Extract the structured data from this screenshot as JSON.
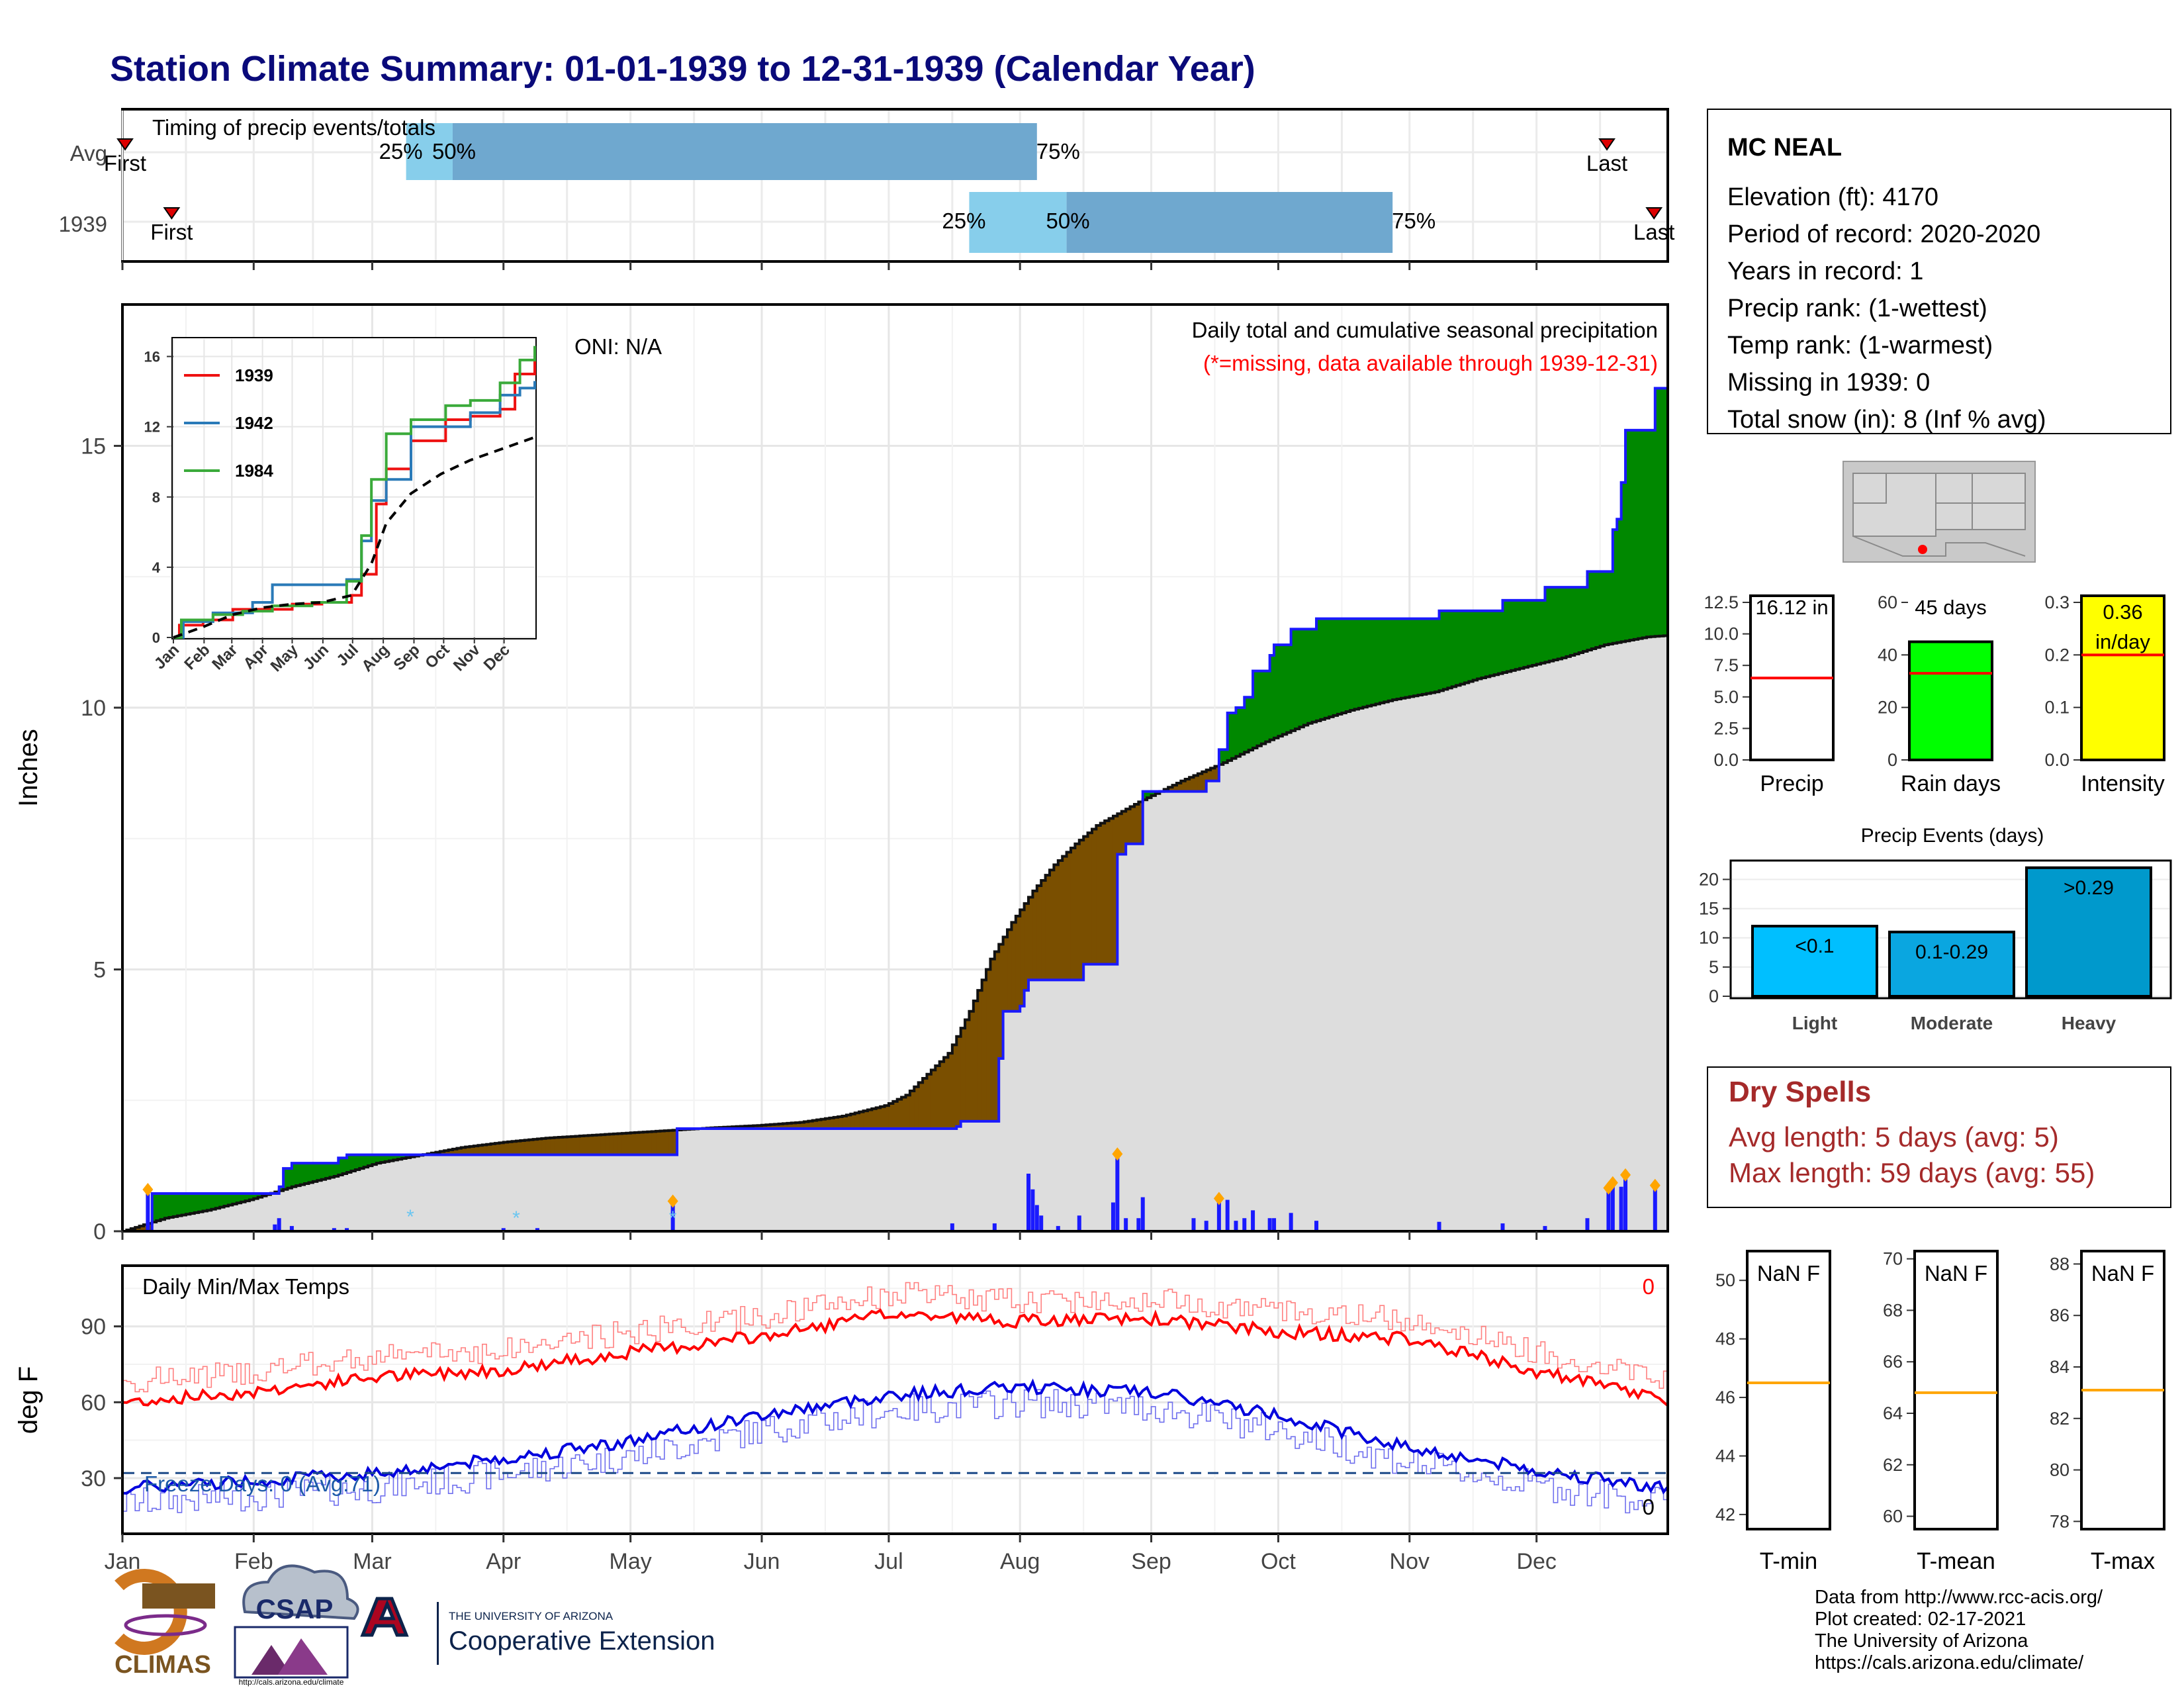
{
  "title": "Station Climate Summary: 01-01-1939 to 12-31-1939 (Calendar Year)",
  "colors": {
    "title": "#0a0a7a",
    "precip_above": "#008800",
    "precip_below": "#7a4f00",
    "climo_fill": "#dddddd",
    "bar_blue": "#1a1aff",
    "marker_orange": "#ffa500",
    "tmax": "#ff0000",
    "tmin": "#0000dd",
    "dry_spell": "#a52a2a",
    "quartile_light": "#87ceeb",
    "quartile_dark": "#6fa8cf"
  },
  "timing": {
    "title": "Timing of precip events/totals",
    "rows": [
      {
        "label": "Avg",
        "first_label": "First",
        "first_day": 0,
        "last_label": "Last",
        "last_day": 350,
        "q25_label": "25%",
        "q25_day": 67,
        "q50_label": "50%",
        "q50_day": 78,
        "q75_label": "75%",
        "q75_day": 216
      },
      {
        "label": "1939",
        "first_label": "First",
        "first_day": 6,
        "last_label": "Last",
        "last_day": 363,
        "q25_label": "25%",
        "q25_day": 200,
        "q50_label": "50%",
        "q50_day": 223,
        "q75_label": "75%",
        "q75_day": 300
      }
    ]
  },
  "station": {
    "name": "MC NEAL",
    "lines": [
      "Elevation (ft): 4170",
      "Period of record: 2020-2020",
      "Years in record: 1",
      "Precip rank:  (1-wettest)",
      "Temp rank:  (1-warmest)",
      "Missing in 1939: 0",
      "Total snow (in): 8 (Inf % avg)"
    ]
  },
  "map_marker": "red-dot-station-location",
  "main_chart": {
    "ylabel": "Inches",
    "oni": "ONI: N/A",
    "subtitle": "Daily total and cumulative seasonal precipitation",
    "missing_note": "(*=missing, data available through 1939-12-31)",
    "yticks": [
      "0",
      "5",
      "10",
      "15"
    ],
    "months": [
      "Jan",
      "Feb",
      "Mar",
      "Apr",
      "May",
      "Jun",
      "Jul",
      "Aug",
      "Sep",
      "Oct",
      "Nov",
      "Dec"
    ]
  },
  "inset": {
    "yticks": [
      "0",
      "4",
      "8",
      "12",
      "16"
    ],
    "months": [
      "Jan",
      "Feb",
      "Mar",
      "Apr",
      "May",
      "Jun",
      "Jul",
      "Aug",
      "Sep",
      "Oct",
      "Nov",
      "Dec"
    ],
    "legend": [
      {
        "name": "1939",
        "color": "#ee1111"
      },
      {
        "name": "1942",
        "color": "#2a7ab8"
      },
      {
        "name": "1984",
        "color": "#3aaa3a"
      }
    ]
  },
  "bar_precip": {
    "title": "Precip",
    "label": "16.12 in",
    "yticks": [
      "0.0",
      "2.5",
      "5.0",
      "7.5",
      "10.0",
      "12.5"
    ],
    "value": 16.12,
    "avg": 6.5,
    "ymax": 12.5,
    "color": "#ffffff"
  },
  "bar_raindays": {
    "title": "Rain days",
    "label": "45 days",
    "yticks": [
      "0",
      "20",
      "40",
      "60"
    ],
    "value": 45,
    "avg": 33,
    "ymax": 60,
    "color": "#00ff00"
  },
  "bar_intensity": {
    "title": "Intensity",
    "label1": "0.36",
    "label2": "in/day",
    "yticks": [
      "0.0",
      "0.1",
      "0.2",
      "0.3"
    ],
    "value": 0.36,
    "avg": 0.2,
    "ymax": 0.3,
    "color": "#ffff00"
  },
  "events": {
    "title": "Precip Events (days)",
    "yticks": [
      "0",
      "5",
      "10",
      "15",
      "20"
    ],
    "categories": [
      "Light",
      "Moderate",
      "Heavy"
    ],
    "labels": [
      "<0.1",
      "0.1-0.29",
      ">0.29"
    ],
    "values": [
      12,
      11,
      22
    ],
    "colors": [
      "#00bfff",
      "#0aa6e0",
      "#0099cc"
    ]
  },
  "dry_spells": {
    "title": "Dry Spells",
    "avg_line": "Avg length: 5 days (avg: 5)",
    "max_line": "Max length: 59 days (avg: 55)"
  },
  "temps": {
    "ylabel": "deg F",
    "title": "Daily Min/Max Temps",
    "freeze": "Freeze Days: 0 (Avg:71)",
    "top_count": "0",
    "bottom_count": "0",
    "yticks": [
      "30",
      "60",
      "90"
    ]
  },
  "tboxes": [
    {
      "title": "T-min",
      "label": "NaN F",
      "yticks": [
        "42",
        "44",
        "46",
        "48",
        "50"
      ],
      "ymin": 41.5,
      "ymax": 51,
      "avg": 46.5
    },
    {
      "title": "T-mean",
      "label": "NaN F",
      "yticks": [
        "60",
        "62",
        "64",
        "66",
        "68",
        "70"
      ],
      "ymin": 59.5,
      "ymax": 70.3,
      "avg": 64.8
    },
    {
      "title": "T-max",
      "label": "NaN F",
      "yticks": [
        "78",
        "80",
        "82",
        "84",
        "86",
        "88"
      ],
      "ymin": 77.7,
      "ymax": 88.5,
      "avg": 83.1
    }
  ],
  "logos": {
    "climas": "CLIMAS",
    "csap": "CSAP",
    "csap_url": "http://cals.arizona.edu/climate",
    "ua_small": "THE UNIVERSITY OF ARIZONA",
    "ua_big": "Cooperative Extension"
  },
  "footer": [
    "Data from http://www.rcc-acis.org/",
    "Plot created: 02-17-2021",
    "The University of Arizona",
    "https://cals.arizona.edu/climate/"
  ],
  "chart_data": [
    {
      "type": "area",
      "title": "Daily total and cumulative seasonal precipitation",
      "xlabel": "",
      "ylabel": "Inches",
      "ylim": [
        0,
        17.7
      ],
      "x_months": [
        "Jan",
        "Feb",
        "Mar",
        "Apr",
        "May",
        "Jun",
        "Jul",
        "Aug",
        "Sep",
        "Oct",
        "Nov",
        "Dec"
      ],
      "cumulative_1939": [
        [
          0,
          0
        ],
        [
          6,
          0
        ],
        [
          7,
          0.72
        ],
        [
          36,
          0.72
        ],
        [
          37,
          0.85
        ],
        [
          38,
          1.2
        ],
        [
          39,
          1.2
        ],
        [
          40,
          1.3
        ],
        [
          50,
          1.3
        ],
        [
          51,
          1.4
        ],
        [
          52,
          1.4
        ],
        [
          53,
          1.46
        ],
        [
          130,
          1.46
        ],
        [
          131,
          1.96
        ],
        [
          197,
          2.0
        ],
        [
          198,
          2.1
        ],
        [
          206,
          2.1
        ],
        [
          207,
          3.3
        ],
        [
          208,
          4.2
        ],
        [
          212,
          4.3
        ],
        [
          213,
          4.6
        ],
        [
          214,
          4.8
        ],
        [
          226,
          4.8
        ],
        [
          227,
          5.1
        ],
        [
          234,
          5.1
        ],
        [
          235,
          7.2
        ],
        [
          237,
          7.4
        ],
        [
          240,
          7.4
        ],
        [
          241,
          8.4
        ],
        [
          255,
          8.4
        ],
        [
          256,
          8.6
        ],
        [
          258,
          8.6
        ],
        [
          259,
          9.2
        ],
        [
          261,
          9.9
        ],
        [
          263,
          10.0
        ],
        [
          265,
          10.2
        ],
        [
          267,
          10.7
        ],
        [
          271,
          11.0
        ],
        [
          272,
          11.2
        ],
        [
          276,
          11.5
        ],
        [
          282,
          11.7
        ],
        [
          310,
          11.7
        ],
        [
          311,
          11.85
        ],
        [
          325,
          11.85
        ],
        [
          326,
          12.05
        ],
        [
          335,
          12.05
        ],
        [
          336,
          12.3
        ],
        [
          345,
          12.3
        ],
        [
          346,
          12.6
        ],
        [
          351,
          12.6
        ],
        [
          352,
          13.4
        ],
        [
          353,
          13.6
        ],
        [
          354,
          14.3
        ],
        [
          355,
          15.3
        ],
        [
          361,
          15.3
        ],
        [
          362,
          16.1
        ],
        [
          365,
          16.12
        ]
      ],
      "climo_avg": [
        [
          0,
          0
        ],
        [
          10,
          0.25
        ],
        [
          20,
          0.4
        ],
        [
          30,
          0.6
        ],
        [
          40,
          0.85
        ],
        [
          50,
          1.05
        ],
        [
          60,
          1.3
        ],
        [
          70,
          1.45
        ],
        [
          80,
          1.6
        ],
        [
          90,
          1.7
        ],
        [
          100,
          1.78
        ],
        [
          110,
          1.83
        ],
        [
          120,
          1.88
        ],
        [
          130,
          1.93
        ],
        [
          140,
          1.98
        ],
        [
          150,
          2.02
        ],
        [
          160,
          2.08
        ],
        [
          170,
          2.2
        ],
        [
          180,
          2.4
        ],
        [
          185,
          2.6
        ],
        [
          190,
          3.0
        ],
        [
          195,
          3.4
        ],
        [
          200,
          4.2
        ],
        [
          205,
          5.2
        ],
        [
          210,
          5.9
        ],
        [
          215,
          6.5
        ],
        [
          220,
          7.0
        ],
        [
          225,
          7.4
        ],
        [
          230,
          7.75
        ],
        [
          240,
          8.2
        ],
        [
          250,
          8.6
        ],
        [
          260,
          8.95
        ],
        [
          270,
          9.35
        ],
        [
          280,
          9.7
        ],
        [
          290,
          9.95
        ],
        [
          300,
          10.15
        ],
        [
          310,
          10.3
        ],
        [
          320,
          10.55
        ],
        [
          330,
          10.75
        ],
        [
          340,
          10.95
        ],
        [
          350,
          11.2
        ],
        [
          360,
          11.35
        ],
        [
          365,
          11.38
        ]
      ],
      "daily_1939": [
        [
          6,
          0.72
        ],
        [
          36,
          0.13
        ],
        [
          37,
          0.25
        ],
        [
          40,
          0.1
        ],
        [
          50,
          0.06
        ],
        [
          53,
          0.06
        ],
        [
          90,
          0.06
        ],
        [
          98,
          0.06
        ],
        [
          130,
          0.5
        ],
        [
          196,
          0.15
        ],
        [
          206,
          0.15
        ],
        [
          214,
          1.1
        ],
        [
          215,
          0.8
        ],
        [
          216,
          0.5
        ],
        [
          217,
          0.3
        ],
        [
          221,
          0.1
        ],
        [
          226,
          0.3
        ],
        [
          234,
          0.55
        ],
        [
          235,
          1.4
        ],
        [
          237,
          0.25
        ],
        [
          240,
          0.25
        ],
        [
          241,
          0.65
        ],
        [
          253,
          0.25
        ],
        [
          256,
          0.2
        ],
        [
          259,
          0.55
        ],
        [
          261,
          0.6
        ],
        [
          263,
          0.2
        ],
        [
          265,
          0.25
        ],
        [
          267,
          0.4
        ],
        [
          271,
          0.25
        ],
        [
          272,
          0.25
        ],
        [
          276,
          0.35
        ],
        [
          282,
          0.2
        ],
        [
          311,
          0.18
        ],
        [
          326,
          0.15
        ],
        [
          336,
          0.1
        ],
        [
          346,
          0.25
        ],
        [
          351,
          0.75
        ],
        [
          352,
          0.85
        ],
        [
          354,
          0.85
        ],
        [
          355,
          1.0
        ],
        [
          362,
          0.8
        ]
      ],
      "daily_markers_days": [
        6,
        130,
        235,
        259,
        351,
        352,
        355,
        362
      ]
    },
    {
      "type": "line",
      "title": "",
      "xlabel": "",
      "ylabel": "",
      "ylim": [
        0,
        17
      ],
      "series": [
        {
          "name": "1939",
          "points": [
            [
              0,
              0
            ],
            [
              6,
              0.7
            ],
            [
              30,
              1.0
            ],
            [
              60,
              1.6
            ],
            [
              120,
              1.9
            ],
            [
              150,
              2.0
            ],
            [
              180,
              2.4
            ],
            [
              190,
              3.6
            ],
            [
              205,
              7.6
            ],
            [
              215,
              9.6
            ],
            [
              240,
              11.2
            ],
            [
              275,
              12.4
            ],
            [
              300,
              12.6
            ],
            [
              330,
              13.0
            ],
            [
              345,
              15.0
            ],
            [
              365,
              16.5
            ]
          ]
        },
        {
          "name": "1942",
          "points": [
            [
              0,
              0
            ],
            [
              10,
              0.9
            ],
            [
              40,
              1.4
            ],
            [
              80,
              2.0
            ],
            [
              100,
              3.0
            ],
            [
              150,
              3.0
            ],
            [
              175,
              3.3
            ],
            [
              190,
              5.5
            ],
            [
              200,
              7.8
            ],
            [
              215,
              9.0
            ],
            [
              240,
              12.0
            ],
            [
              275,
              12.0
            ],
            [
              300,
              12.8
            ],
            [
              330,
              13.8
            ],
            [
              350,
              14.2
            ],
            [
              365,
              14.6
            ]
          ]
        },
        {
          "name": "1984",
          "points": [
            [
              0,
              0
            ],
            [
              8,
              1.0
            ],
            [
              40,
              1.3
            ],
            [
              70,
              1.5
            ],
            [
              100,
              1.8
            ],
            [
              140,
              2.0
            ],
            [
              175,
              3.2
            ],
            [
              190,
              5.8
            ],
            [
              200,
              9.0
            ],
            [
              215,
              11.6
            ],
            [
              240,
              12.4
            ],
            [
              275,
              13.2
            ],
            [
              300,
              13.5
            ],
            [
              330,
              14.5
            ],
            [
              350,
              15.8
            ],
            [
              365,
              16.6
            ]
          ]
        },
        {
          "name": "avg",
          "points": [
            [
              0,
              0
            ],
            [
              30,
              0.6
            ],
            [
              60,
              1.3
            ],
            [
              90,
              1.7
            ],
            [
              120,
              1.9
            ],
            [
              150,
              2.0
            ],
            [
              180,
              2.4
            ],
            [
              200,
              4.2
            ],
            [
              215,
              6.5
            ],
            [
              240,
              8.2
            ],
            [
              270,
              9.3
            ],
            [
              300,
              10.1
            ],
            [
              330,
              10.7
            ],
            [
              365,
              11.4
            ]
          ]
        }
      ]
    },
    {
      "type": "bar",
      "title": "Precip Events (days)",
      "categories": [
        "Light",
        "Moderate",
        "Heavy"
      ],
      "values": [
        12,
        11,
        22
      ],
      "ylim": [
        0,
        23
      ]
    },
    {
      "type": "line",
      "title": "Daily Min/Max Temps",
      "xlabel": "",
      "ylabel": "deg F",
      "ylim": [
        8,
        114
      ],
      "series": [
        {
          "name": "Tmax",
          "monthly_anchor": [
            [
              0,
              60
            ],
            [
              30,
              64
            ],
            [
              60,
              70
            ],
            [
              91,
              73
            ],
            [
              121,
              80
            ],
            [
              151,
              86
            ],
            [
              182,
              95
            ],
            [
              212,
              92
            ],
            [
              243,
              93
            ],
            [
              273,
              88
            ],
            [
              304,
              85
            ],
            [
              334,
              72
            ],
            [
              365,
              61
            ]
          ]
        },
        {
          "name": "Tmin",
          "monthly_anchor": [
            [
              0,
              26
            ],
            [
              30,
              29
            ],
            [
              60,
              32
            ],
            [
              91,
              38
            ],
            [
              121,
              45
            ],
            [
              151,
              55
            ],
            [
              182,
              63
            ],
            [
              212,
              66
            ],
            [
              243,
              64
            ],
            [
              273,
              55
            ],
            [
              304,
              42
            ],
            [
              334,
              33
            ],
            [
              365,
              26
            ]
          ]
        }
      ],
      "freeze_threshold": 32
    }
  ]
}
